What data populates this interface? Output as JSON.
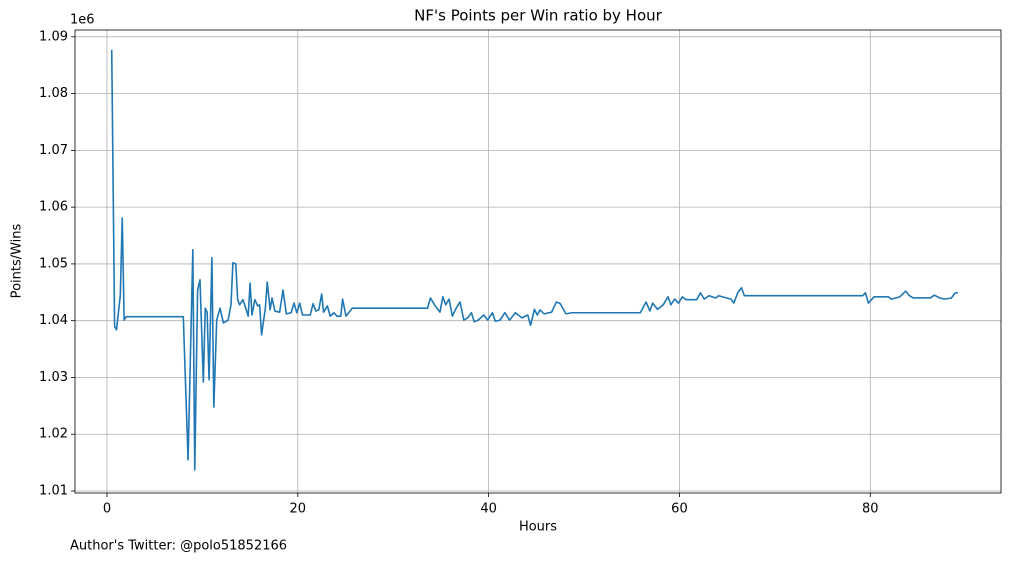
{
  "chart_data": {
    "type": "line",
    "title": "NF's Points per Win ratio by Hour",
    "x_label": "Hours",
    "y_label": "Points/Wins",
    "y_offset_label": "1e6",
    "footnote": "Author's Twitter: @polo51852166",
    "grid": true,
    "xlim": [
      -3.35,
      93.7
    ],
    "xticks": [
      0,
      20,
      40,
      60,
      80
    ],
    "ylim": [
      1.00965,
      1.0912
    ],
    "yticks": [
      1.01,
      1.02,
      1.03,
      1.04,
      1.05,
      1.06,
      1.07,
      1.08,
      1.09
    ],
    "series": [
      {
        "name": "Points/Wins",
        "color": "#1f77b4",
        "x": [
          0.5,
          0.8,
          1.0,
          1.4,
          1.6,
          1.8,
          2.0,
          8.0,
          8.5,
          9.0,
          9.2,
          9.5,
          9.75,
          10.1,
          10.3,
          10.5,
          10.7,
          11.0,
          11.2,
          11.5,
          11.85,
          12.2,
          12.7,
          13.0,
          13.2,
          13.5,
          13.7,
          13.9,
          14.25,
          14.6,
          14.8,
          15.0,
          15.2,
          15.5,
          15.8,
          16.0,
          16.2,
          16.6,
          16.8,
          17.1,
          17.3,
          17.6,
          18.1,
          18.45,
          18.8,
          19.3,
          19.6,
          19.9,
          20.2,
          20.5,
          21.3,
          21.6,
          21.9,
          22.2,
          22.5,
          22.7,
          23.1,
          23.4,
          23.8,
          24.1,
          24.5,
          24.7,
          25.05,
          25.7,
          33.6,
          33.9,
          34.4,
          34.9,
          35.2,
          35.5,
          35.85,
          36.2,
          36.6,
          37.0,
          37.4,
          37.8,
          38.2,
          38.5,
          38.9,
          39.5,
          39.9,
          40.4,
          40.7,
          41.2,
          41.7,
          42.2,
          42.8,
          43.5,
          44.1,
          44.4,
          44.8,
          45.1,
          45.4,
          45.8,
          46.6,
          47.1,
          47.5,
          48.1,
          48.7,
          55.9,
          56.5,
          56.9,
          57.2,
          57.7,
          58.3,
          58.8,
          59.1,
          59.5,
          59.9,
          60.3,
          60.7,
          61.8,
          62.2,
          62.6,
          63.1,
          63.8,
          64.1,
          65.4,
          65.7,
          66.1,
          66.5,
          66.8,
          79.2,
          79.5,
          79.8,
          80.4,
          81.9,
          82.2,
          83.1,
          83.7,
          84.1,
          84.5,
          86.3,
          86.7,
          87.3,
          87.8,
          88.5,
          88.9,
          89.2
        ],
        "values": [
          1.0877,
          1.039,
          1.0384,
          1.0445,
          1.0581,
          1.0401,
          1.0407,
          1.0407,
          1.0155,
          1.0525,
          1.0137,
          1.0454,
          1.0472,
          1.0292,
          1.0422,
          1.0415,
          1.0296,
          1.0511,
          1.0248,
          1.0401,
          1.0422,
          1.0396,
          1.0401,
          1.0428,
          1.0502,
          1.05,
          1.0437,
          1.0428,
          1.0437,
          1.0419,
          1.0408,
          1.0466,
          1.041,
          1.0437,
          1.0426,
          1.0428,
          1.0375,
          1.0422,
          1.0468,
          1.0419,
          1.044,
          1.0417,
          1.0415,
          1.0454,
          1.0412,
          1.0414,
          1.0431,
          1.0414,
          1.0431,
          1.041,
          1.041,
          1.043,
          1.0417,
          1.0419,
          1.0447,
          1.0415,
          1.0426,
          1.0408,
          1.0414,
          1.0408,
          1.0408,
          1.0438,
          1.0408,
          1.0422,
          1.0422,
          1.044,
          1.0426,
          1.0415,
          1.0442,
          1.0428,
          1.0438,
          1.0408,
          1.0422,
          1.0433,
          1.0401,
          1.0405,
          1.0414,
          1.0398,
          1.0401,
          1.041,
          1.0401,
          1.0414,
          1.0399,
          1.0401,
          1.0414,
          1.0401,
          1.0414,
          1.0405,
          1.041,
          1.0392,
          1.042,
          1.041,
          1.0419,
          1.0412,
          1.0415,
          1.0433,
          1.043,
          1.0412,
          1.0414,
          1.0414,
          1.0433,
          1.0417,
          1.0431,
          1.042,
          1.0428,
          1.0442,
          1.0428,
          1.0438,
          1.0431,
          1.0442,
          1.0437,
          1.0437,
          1.0449,
          1.0438,
          1.0444,
          1.044,
          1.0444,
          1.0438,
          1.0431,
          1.0449,
          1.0458,
          1.0444,
          1.0444,
          1.0449,
          1.0431,
          1.0442,
          1.0442,
          1.0438,
          1.0442,
          1.0452,
          1.0444,
          1.044,
          1.044,
          1.0445,
          1.044,
          1.0438,
          1.044,
          1.0449,
          1.0449
        ]
      }
    ]
  }
}
